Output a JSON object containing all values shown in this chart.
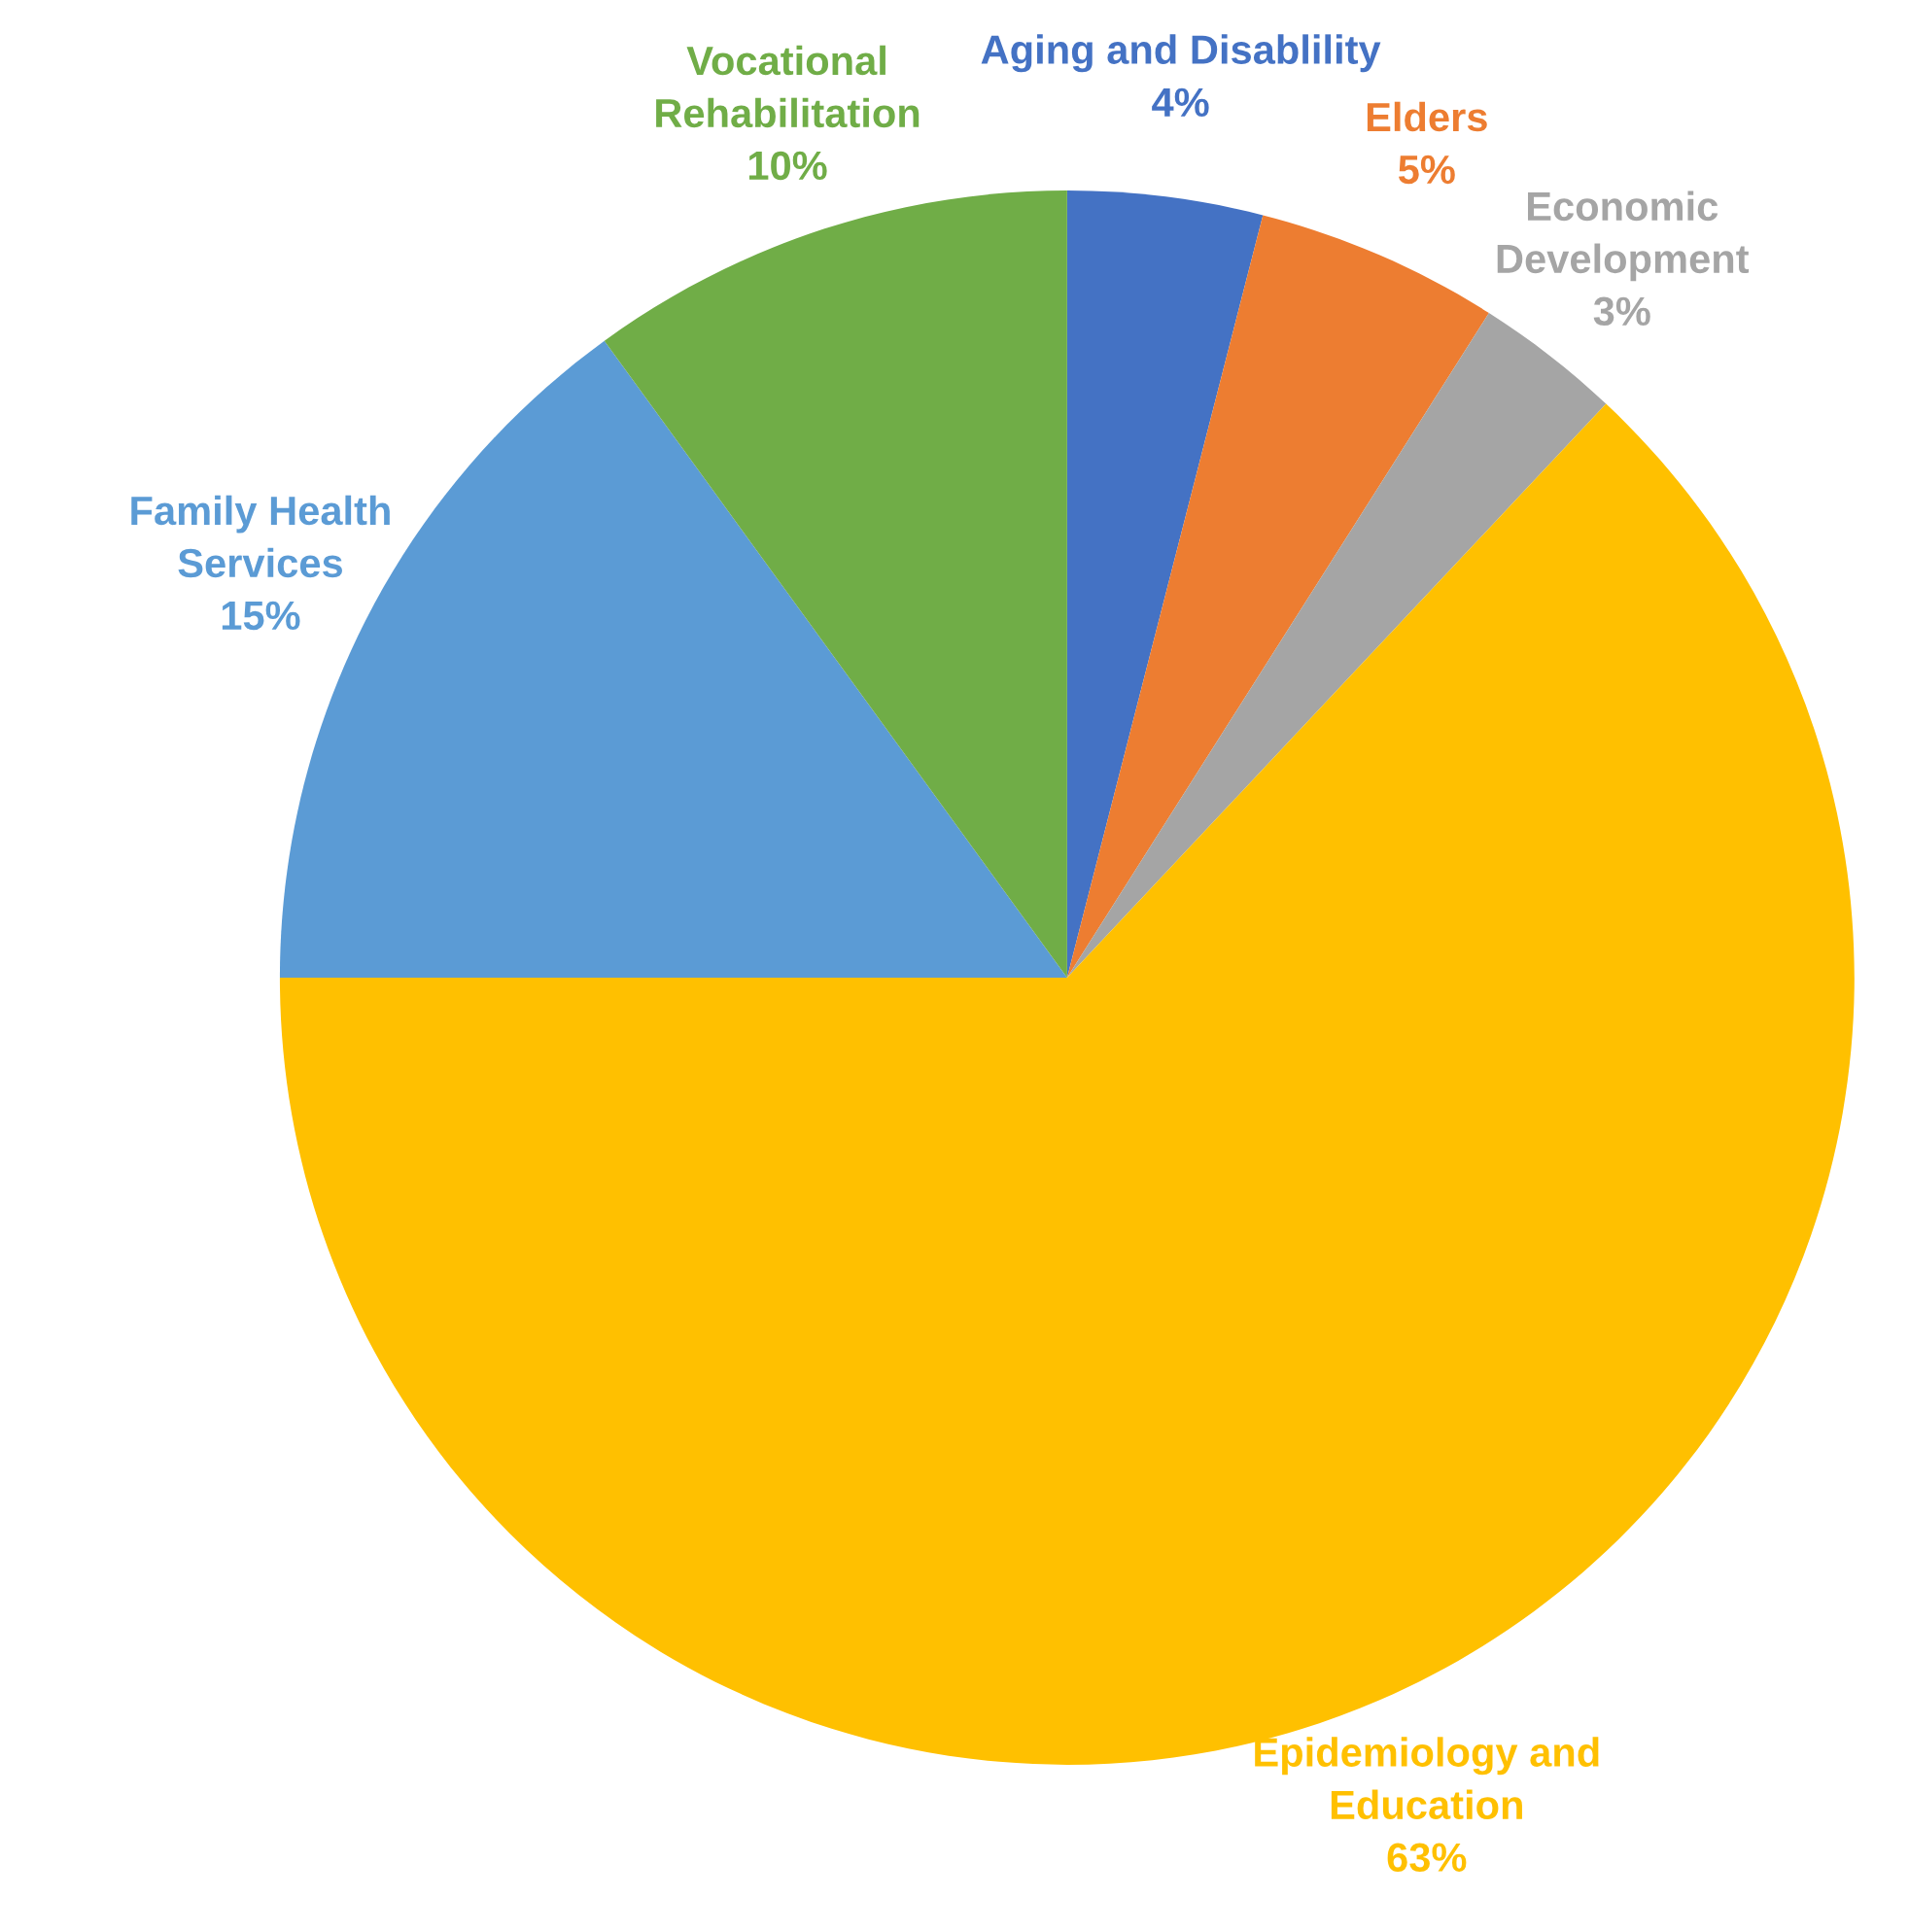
{
  "chart_data": {
    "type": "pie",
    "categories": [
      "Aging and Disablility",
      "Elders",
      "Economic\nDevelopment",
      "Epidemiology and\nEducation",
      "Family Health\nServices",
      "Vocational\nRehabilitation"
    ],
    "values": [
      4,
      5,
      3,
      63,
      15,
      10
    ],
    "colors": [
      "#4472c4",
      "#ed7d31",
      "#a5a5a5",
      "#ffc000",
      "#5b9bd5",
      "#70ad47"
    ],
    "value_labels": [
      "4%",
      "5%",
      "3%",
      "63%",
      "15%",
      "10%"
    ]
  }
}
